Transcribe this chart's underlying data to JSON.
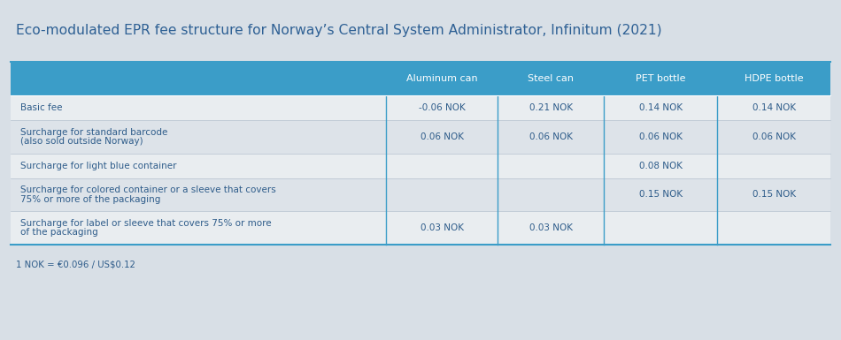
{
  "title": "Eco-modulated EPR fee structure for Norway’s Central System Administrator, Infinitum (2021)",
  "footnote": "1 NOK = €0.096 / US$0.12",
  "header_cols": [
    "Aluminum can",
    "Steel can",
    "PET bottle",
    "HDPE bottle"
  ],
  "rows": [
    {
      "label": "Basic fee",
      "label2": "",
      "values": [
        "-0.06 NOK",
        "0.21 NOK",
        "0.14 NOK",
        "0.14 NOK"
      ]
    },
    {
      "label": "Surcharge for standard barcode",
      "label2": "(also sold outside Norway)",
      "values": [
        "0.06 NOK",
        "0.06 NOK",
        "0.06 NOK",
        "0.06 NOK"
      ]
    },
    {
      "label": "Surcharge for light blue container",
      "label2": "",
      "values": [
        "",
        "",
        "0.08 NOK",
        ""
      ]
    },
    {
      "label": "Surcharge for colored container or a sleeve that covers",
      "label2": "75% or more of the packaging",
      "values": [
        "",
        "",
        "0.15 NOK",
        "0.15 NOK"
      ]
    },
    {
      "label": "Surcharge for label or sleeve that covers 75% or more",
      "label2": "of the packaging",
      "values": [
        "0.03 NOK",
        "0.03 NOK",
        "",
        ""
      ]
    }
  ],
  "bg_color": "#d8dfe6",
  "header_bg": "#3b9dc8",
  "header_text_color": "#ffffff",
  "row_colors": [
    "#e9edf0",
    "#dde3e9",
    "#e9edf0",
    "#dde3e9",
    "#e9edf0"
  ],
  "text_color": "#2e5c8a",
  "title_color": "#2e6094",
  "divider_color": "#3b9dc8",
  "row_divider_color": "#bdc8d4"
}
